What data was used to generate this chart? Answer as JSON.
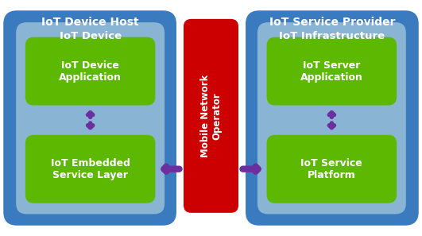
{
  "bg_color": "#ffffff",
  "outer_box_color": "#3a7abf",
  "inner_box_color": "#8ab4d4",
  "green_box_color": "#5cb800",
  "red_box_color": "#cc0000",
  "arrow_color": "#6b2fa0",
  "text_color_white": "#ffffff",
  "left_outer_label": "IoT Device Host",
  "right_outer_label": "IoT Service Provider",
  "left_inner_label": "IoT Device",
  "right_inner_label": "IoT Infrastructure",
  "left_top_green": "IoT Device\nApplication",
  "left_bottom_green": "IoT Embedded\nService Layer",
  "right_top_green": "IoT Server\nApplication",
  "right_bottom_green": "IoT Service\nPlatform",
  "center_label": "Mobile Network\nOperator",
  "figsize": [
    5.31,
    2.97
  ],
  "dpi": 100,
  "xlim": [
    0,
    10
  ],
  "ylim": [
    0,
    5.6
  ]
}
